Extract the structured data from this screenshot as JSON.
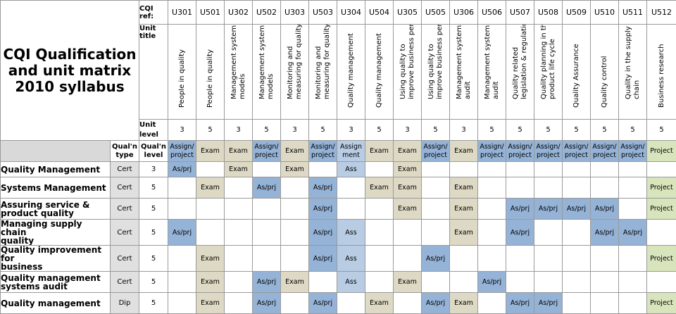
{
  "title": "CQI Qualification and unit matrix 2010 syllabus",
  "labels": {
    "cqi_ref": "CQI ref:",
    "unit_title": "Unit title",
    "unit_level": "Unit level",
    "qual_type": "Qual'n type",
    "qual_level": "Qual'n level"
  },
  "units": [
    {
      "code": "U301",
      "title": "People in quality",
      "level": "3",
      "method": "Assign/ project"
    },
    {
      "code": "U501",
      "title": "People in quality",
      "level": "5",
      "method": "Exam"
    },
    {
      "code": "U302",
      "title": "Management system\nmodels",
      "level": "3",
      "method": "Exam"
    },
    {
      "code": "U502",
      "title": "Management system\nmodels",
      "level": "5",
      "method": "Assign/ project"
    },
    {
      "code": "U303",
      "title": "Monitoring and\nmeasuring for quality",
      "level": "3",
      "method": "Exam"
    },
    {
      "code": "U503",
      "title": "Monitoring and\nmeasuring for quality",
      "level": "5",
      "method": "Assign/ project"
    },
    {
      "code": "U304",
      "title": "Quality management",
      "level": "3",
      "method": "Assign ment"
    },
    {
      "code": "U504",
      "title": "Quality management",
      "level": "5",
      "method": "Exam"
    },
    {
      "code": "U305",
      "title": "Using quality to\nimprove business perf.",
      "level": "3",
      "method": "Exam"
    },
    {
      "code": "U505",
      "title": "Using quality to\nimprove business perf.",
      "level": "5",
      "method": "Assign/ project"
    },
    {
      "code": "U306",
      "title": "Management systems\naudit",
      "level": "3",
      "method": "Exam"
    },
    {
      "code": "U506",
      "title": "Management systems\naudit",
      "level": "5",
      "method": "Assign/ project"
    },
    {
      "code": "U507",
      "title": "Quality related\nlegislation & regulation",
      "level": "5",
      "method": "Assign/ project"
    },
    {
      "code": "U508",
      "title": "Quality planning in the\nproduct life cycle",
      "level": "5",
      "method": "Assign/ project"
    },
    {
      "code": "U509",
      "title": "Quality Assurance",
      "level": "5",
      "method": "Assign/ project"
    },
    {
      "code": "U510",
      "title": "Quality control",
      "level": "5",
      "method": "Assign/ project"
    },
    {
      "code": "U511",
      "title": "Quality in the supply\nchain",
      "level": "5",
      "method": "Assign/ project"
    },
    {
      "code": "U512",
      "title": "Business research",
      "level": "5",
      "method": "Project"
    }
  ],
  "qualifications": [
    {
      "name": "Quality Management",
      "type": "Cert",
      "level": "3",
      "cells": [
        "As/prj",
        "",
        "Exam",
        "",
        "Exam",
        "",
        "Ass",
        "",
        "Exam",
        "",
        "",
        "",
        "",
        "",
        "",
        "",
        "",
        ""
      ]
    },
    {
      "name": "Systems Management",
      "type": "Cert",
      "level": "5",
      "cells": [
        "",
        "Exam",
        "",
        "As/prj",
        "",
        "As/prj",
        "",
        "Exam",
        "Exam",
        "",
        "Exam",
        "",
        "",
        "",
        "",
        "",
        "",
        "Project"
      ]
    },
    {
      "name": "Assuring service &\nproduct quality",
      "type": "Cert",
      "level": "5",
      "cells": [
        "",
        "",
        "",
        "",
        "",
        "As/prj",
        "",
        "",
        "Exam",
        "",
        "Exam",
        "",
        "As/prj",
        "As/prj",
        "As/prj",
        "As/prj",
        "",
        "Project"
      ]
    },
    {
      "name": "Managing supply chain\nquality",
      "type": "Cert",
      "level": "5",
      "cells": [
        "As/prj",
        "",
        "",
        "",
        "",
        "As/prj",
        "Ass",
        "",
        "",
        "",
        "Exam",
        "",
        "As/prj",
        "",
        "",
        "As/prj",
        "As/prj",
        ""
      ]
    },
    {
      "name": "Quality improvement for\nbusiness",
      "type": "Cert",
      "level": "5",
      "cells": [
        "",
        "Exam",
        "",
        "",
        "",
        "As/prj",
        "Ass",
        "",
        "",
        "As/prj",
        "",
        "",
        "",
        "",
        "",
        "",
        "",
        "Project"
      ]
    },
    {
      "name": "Quality management\nsystems audit",
      "type": "Cert",
      "level": "5",
      "cells": [
        "",
        "Exam",
        "",
        "As/prj",
        "Exam",
        "",
        "Ass",
        "",
        "Exam",
        "",
        "",
        "As/prj",
        "",
        "",
        "",
        "",
        "",
        ""
      ]
    },
    {
      "name": "Quality management",
      "type": "Dip",
      "level": "5",
      "cells": [
        "",
        "Exam",
        "",
        "As/prj",
        "",
        "As/prj",
        "",
        "Exam",
        "",
        "As/prj",
        "Exam",
        "",
        "As/prj",
        "As/prj",
        "",
        "",
        "",
        "Project"
      ]
    }
  ],
  "colors": {
    "assign": "#95b3d7",
    "exam": "#ddd9c4",
    "ass": "#b8cce4",
    "project": "#d8e4bc"
  }
}
